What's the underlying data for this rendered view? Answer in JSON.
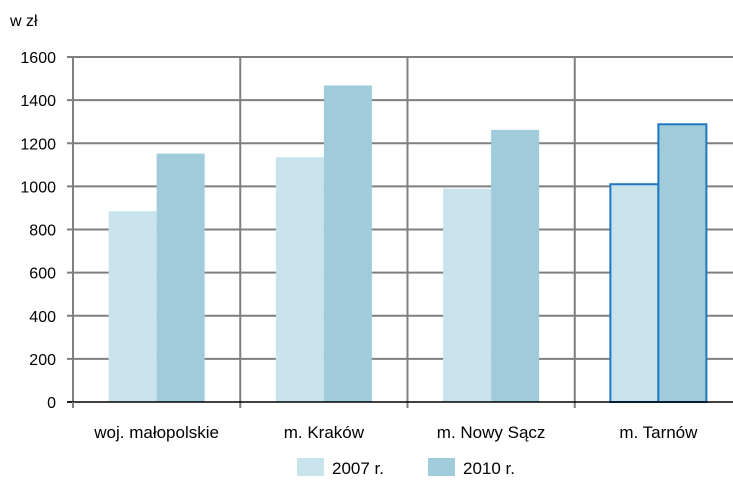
{
  "chart_data": {
    "type": "bar",
    "unit_label": "w zł",
    "categories": [
      "woj. małopolskie",
      "m. Kraków",
      "m. Nowy Sącz",
      "m. Tarnów"
    ],
    "series": [
      {
        "name": "2007 r.",
        "values": [
          885,
          1135,
          990,
          1010
        ],
        "color": "#c9e3ec"
      },
      {
        "name": "2010 r.",
        "values": [
          1152,
          1468,
          1262,
          1288
        ],
        "color": "#9fcbda"
      }
    ],
    "ylim": [
      0,
      1600
    ],
    "yticks": [
      0,
      200,
      400,
      600,
      800,
      1000,
      1200,
      1400,
      1600
    ],
    "grid": true,
    "legend_position": "bottom",
    "highlighted_category": "m. Tarnów",
    "highlight_color": "#1f77c0",
    "gridline_color": "#7f7f7f"
  }
}
